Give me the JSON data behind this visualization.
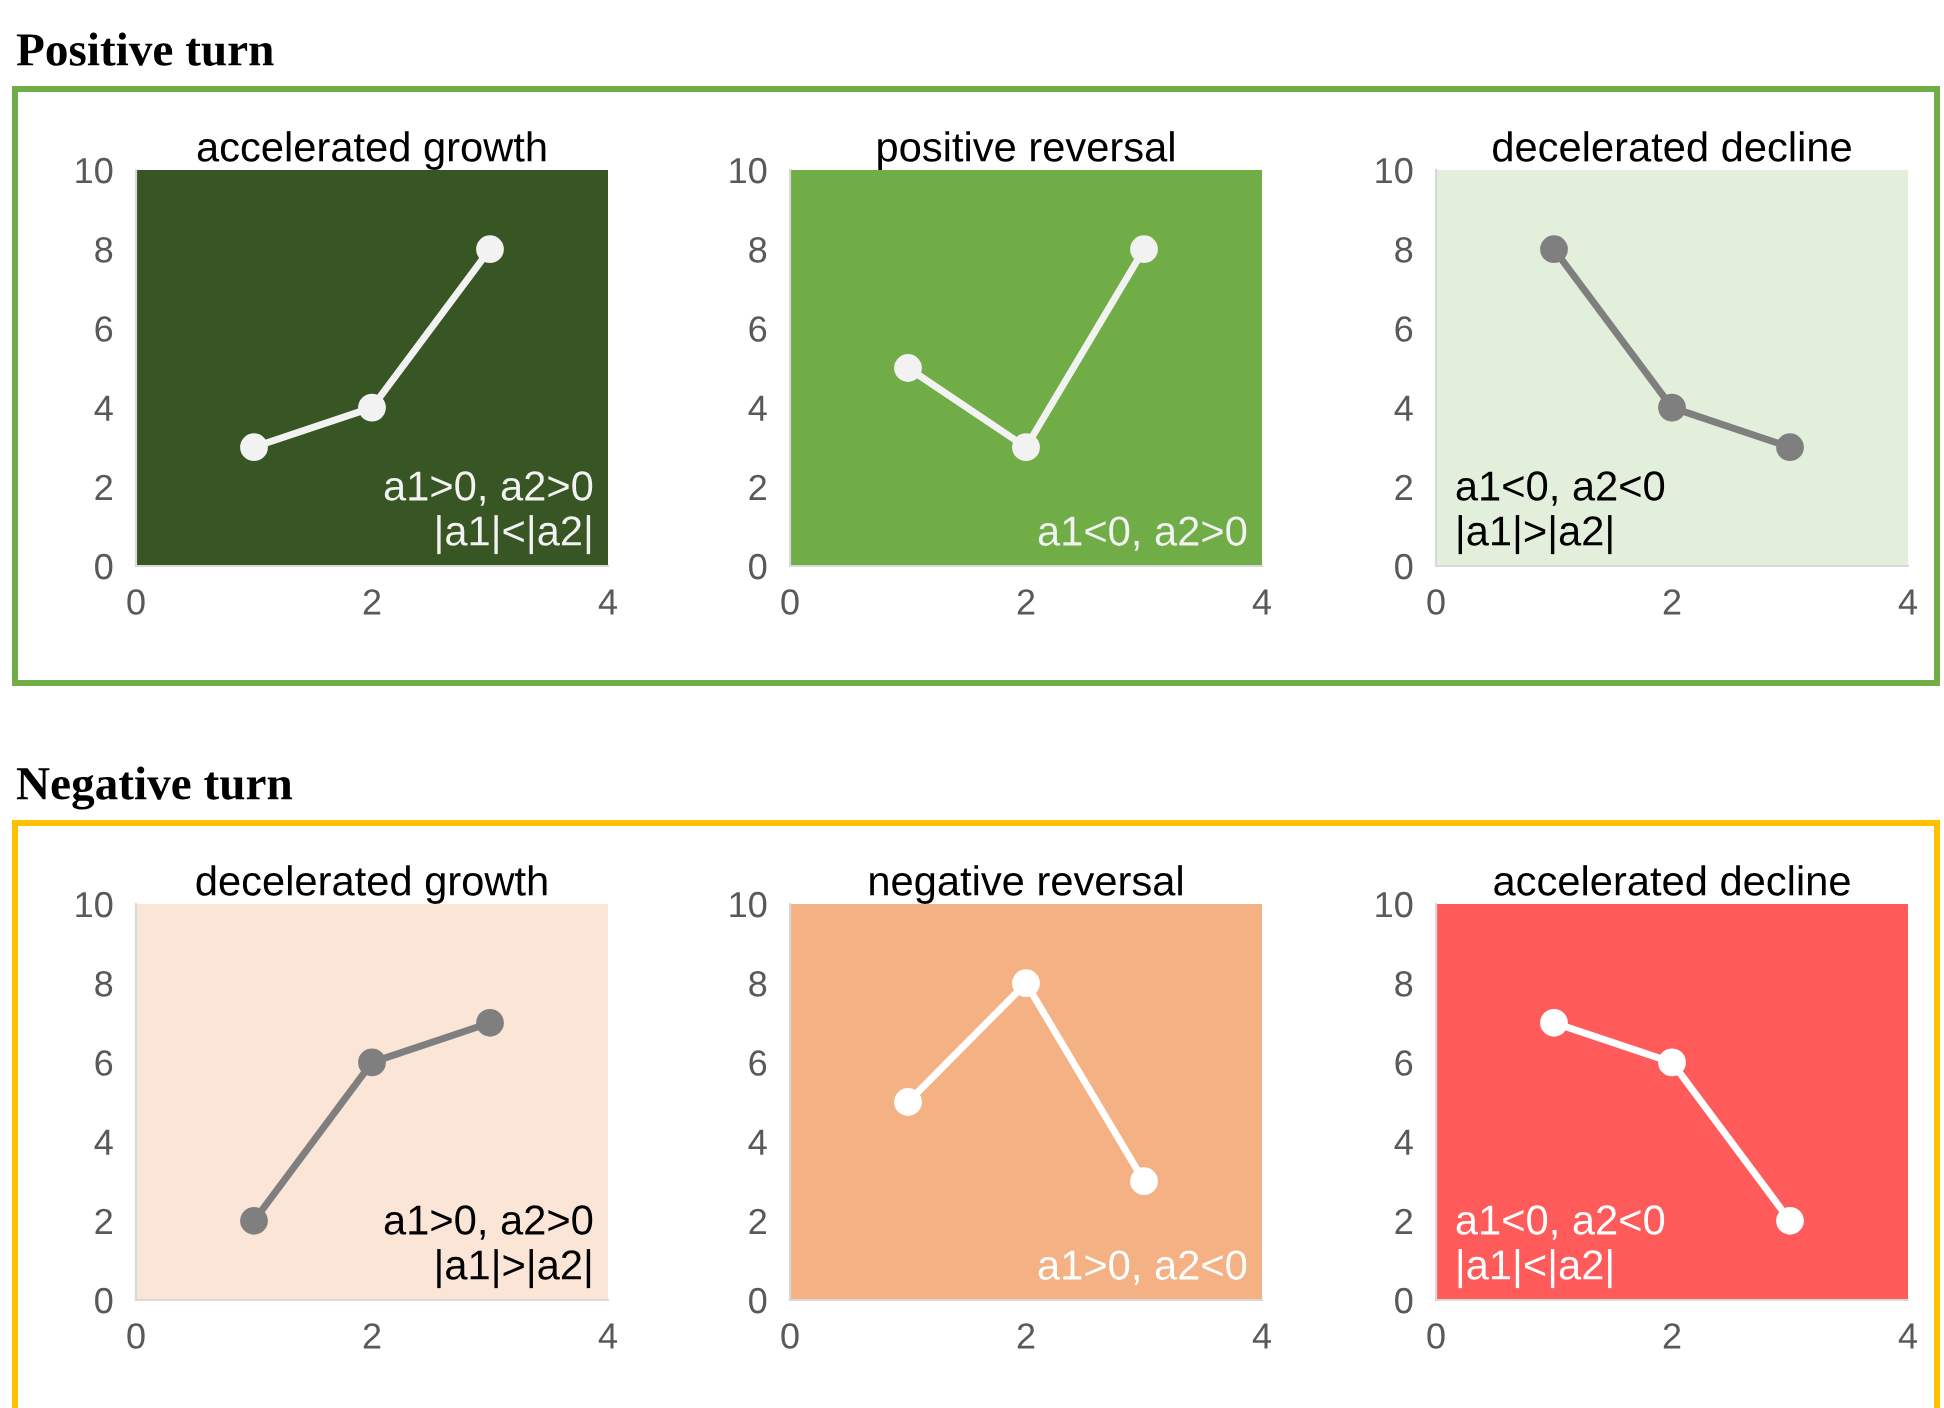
{
  "chart_data": [
    {
      "type": "line",
      "subtitle": "Positive turn",
      "title": "accelerated growth",
      "x": [
        1,
        2,
        3
      ],
      "series": [
        {
          "color": "#f2f2f2",
          "values": [
            3,
            4,
            8
          ]
        }
      ],
      "xlim": [
        0,
        4
      ],
      "xticks": [
        0,
        2,
        4
      ],
      "ylim": [
        0,
        10
      ],
      "yticks": [
        0,
        2,
        4,
        6,
        8,
        10
      ],
      "marker": "circle",
      "grid": false,
      "annotations": [
        "a1>0, a2>0\n|a1|<|a2|"
      ]
    },
    {
      "type": "line",
      "title": "positive reversal",
      "x": [
        1,
        2,
        3
      ],
      "series": [
        {
          "color": "#f2f2f2",
          "values": [
            5,
            3,
            8
          ]
        }
      ],
      "xlim": [
        0,
        4
      ],
      "xticks": [
        0,
        2,
        4
      ],
      "ylim": [
        0,
        10
      ],
      "yticks": [
        0,
        2,
        4,
        6,
        8,
        10
      ],
      "marker": "circle",
      "grid": false,
      "annotations": [
        "a1<0, a2>0"
      ]
    },
    {
      "type": "line",
      "title": "decelerated decline",
      "x": [
        1,
        2,
        3
      ],
      "series": [
        {
          "color": "#7f7f7f",
          "values": [
            8,
            4,
            3
          ]
        }
      ],
      "xlim": [
        0,
        4
      ],
      "xticks": [
        0,
        2,
        4
      ],
      "ylim": [
        0,
        10
      ],
      "yticks": [
        0,
        2,
        4,
        6,
        8,
        10
      ],
      "marker": "circle",
      "grid": false,
      "annotations": [
        "a1<0, a2<0\n|a1|>|a2|"
      ]
    },
    {
      "type": "line",
      "subtitle": "Negative turn",
      "title": "decelerated growth",
      "x": [
        1,
        2,
        3
      ],
      "series": [
        {
          "color": "#7f7f7f",
          "values": [
            2,
            6,
            7
          ]
        }
      ],
      "xlim": [
        0,
        4
      ],
      "xticks": [
        0,
        2,
        4
      ],
      "ylim": [
        0,
        10
      ],
      "yticks": [
        0,
        2,
        4,
        6,
        8,
        10
      ],
      "marker": "circle",
      "grid": false,
      "annotations": [
        "a1>0, a2>0\n|a1|>|a2|"
      ]
    },
    {
      "type": "line",
      "title": "negative reversal",
      "x": [
        1,
        2,
        3
      ],
      "series": [
        {
          "color": "#ffffff",
          "values": [
            5,
            8,
            3
          ]
        }
      ],
      "xlim": [
        0,
        4
      ],
      "xticks": [
        0,
        2,
        4
      ],
      "ylim": [
        0,
        10
      ],
      "yticks": [
        0,
        2,
        4,
        6,
        8,
        10
      ],
      "marker": "circle",
      "grid": false,
      "annotations": [
        "a1>0, a2<0"
      ]
    },
    {
      "type": "line",
      "title": "accelerated decline",
      "x": [
        1,
        2,
        3
      ],
      "series": [
        {
          "color": "#ffffff",
          "values": [
            7,
            6,
            2
          ]
        }
      ],
      "xlim": [
        0,
        4
      ],
      "xticks": [
        0,
        2,
        4
      ],
      "ylim": [
        0,
        10
      ],
      "yticks": [
        0,
        2,
        4,
        6,
        8,
        10
      ],
      "marker": "circle",
      "grid": false,
      "annotations": [
        "a1<0, a2<0\n|a1|<|a2|"
      ]
    }
  ]
}
